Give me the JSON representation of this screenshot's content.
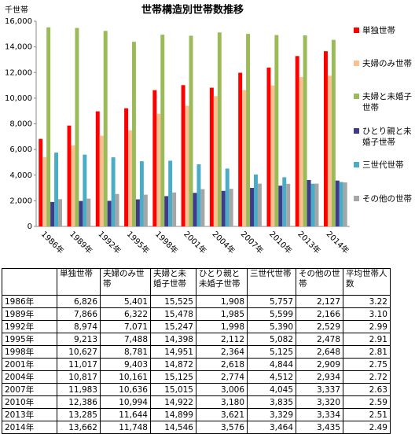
{
  "chart_data": {
    "type": "bar",
    "title": "世帯構造別世帯数推移",
    "y_label": "千世帯",
    "categories": [
      "1986年",
      "1989年",
      "1992年",
      "1995年",
      "1998年",
      "2001年",
      "2004年",
      "2007年",
      "2010年",
      "2013年",
      "2014年"
    ],
    "series": [
      {
        "name": "単独世帯",
        "color": "#ff0000",
        "values": [
          6826,
          7866,
          8974,
          9213,
          10627,
          11017,
          10817,
          11983,
          12386,
          13285,
          13662
        ],
        "value_labels": [
          "6,826",
          "7,866",
          "8,974",
          "9,213",
          "10,627",
          "11,017",
          "10,817",
          "11,983",
          "12,386",
          "13,285",
          "13,662"
        ]
      },
      {
        "name": "夫婦のみ世帯",
        "color": "#fac090",
        "values": [
          5401,
          6322,
          7071,
          7488,
          8781,
          9403,
          10161,
          10636,
          10994,
          11644,
          11748
        ],
        "value_labels": [
          "5,401",
          "6,322",
          "7,071",
          "7,488",
          "8,781",
          "9,403",
          "10,161",
          "10,636",
          "10,994",
          "11,644",
          "11,748"
        ]
      },
      {
        "name": "夫婦と未婚子世帯",
        "color": "#9bbb59",
        "values": [
          15525,
          15478,
          15247,
          14398,
          14951,
          14872,
          15125,
          15015,
          14922,
          14899,
          14546
        ],
        "value_labels": [
          "15,525",
          "15,478",
          "15,247",
          "14,398",
          "14,951",
          "14,872",
          "15,125",
          "15,015",
          "14,922",
          "14,899",
          "14,546"
        ]
      },
      {
        "name": "ひとり親と未婚子世帯",
        "color": "#403a8c",
        "values": [
          1908,
          1985,
          1998,
          2112,
          2364,
          2618,
          2774,
          3006,
          3180,
          3621,
          3576
        ],
        "value_labels": [
          "1,908",
          "1,985",
          "1,998",
          "2,112",
          "2,364",
          "2,618",
          "2,774",
          "3,006",
          "3,180",
          "3,621",
          "3,576"
        ]
      },
      {
        "name": "三世代世帯",
        "color": "#4bacc6",
        "values": [
          5757,
          5599,
          5390,
          5082,
          5125,
          4844,
          4512,
          4045,
          3835,
          3329,
          3464
        ],
        "value_labels": [
          "5,757",
          "5,599",
          "5,390",
          "5,082",
          "5,125",
          "4,844",
          "4,512",
          "4,045",
          "3,835",
          "3,329",
          "3,464"
        ]
      },
      {
        "name": "その他の世帯",
        "color": "#a6a6a6",
        "values": [
          2127,
          2166,
          2529,
          2478,
          2648,
          2909,
          2934,
          3337,
          3320,
          3334,
          3435
        ],
        "value_labels": [
          "2,127",
          "2,166",
          "2,529",
          "2,478",
          "2,648",
          "2,909",
          "2,934",
          "3,337",
          "3,320",
          "3,334",
          "3,435"
        ]
      }
    ],
    "ylim": [
      0,
      16000
    ],
    "yticks": [
      0,
      {
        "value": 2000,
        "label": "2,000"
      },
      {
        "value": 4000,
        "label": "4,000"
      },
      {
        "value": 6000,
        "label": "6,000"
      },
      {
        "value": 8000,
        "label": "8,000"
      },
      {
        "value": 10000,
        "label": "10,000"
      },
      {
        "value": 12000,
        "label": "12,000"
      },
      {
        "value": 14000,
        "label": "14,000"
      },
      {
        "value": 16000,
        "label": "16,000"
      }
    ],
    "grid": false
  },
  "table": {
    "avg_header": "平均世帯人数",
    "avg": [
      "3.22",
      "3.10",
      "2.99",
      "2.91",
      "2.81",
      "2.75",
      "2.72",
      "2.63",
      "2.59",
      "2.51",
      "2.49"
    ]
  }
}
